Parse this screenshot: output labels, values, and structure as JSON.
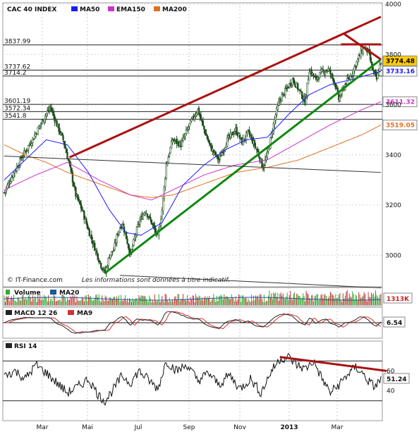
{
  "chart_data": [
    {
      "type": "candlestick",
      "title": "CAC 40 INDEX",
      "legend": [
        {
          "name": "MA50",
          "color": "#1a1aff"
        },
        {
          "name": "EMA150",
          "color": "#cc33cc"
        },
        {
          "name": "MA200",
          "color": "#e07020"
        }
      ],
      "x_ticks": [
        "Mar",
        "Mai",
        "Jul",
        "Sep",
        "Nov",
        "2013",
        "Mar"
      ],
      "y_ticks": [
        3000,
        3200,
        3400,
        3600,
        3800,
        4000
      ],
      "ylim": [
        2880,
        4000
      ],
      "horizontal_levels": [
        {
          "label": "3837.99",
          "value": 3837.99
        },
        {
          "label": "3737.62",
          "value": 3737.62
        },
        {
          "label": "3714.2",
          "value": 3714.2
        },
        {
          "label": "3601.19",
          "value": 3601.19
        },
        {
          "label": "3572.34",
          "value": 3572.34
        },
        {
          "label": "3541.8",
          "value": 3541.8
        }
      ],
      "price_tags": [
        {
          "label": "3774.48",
          "value": 3774.48,
          "bg": "#ffcc00",
          "color": "#000000"
        },
        {
          "label": "3733.16",
          "value": 3733.16,
          "bg": "#ffffff",
          "color": "#1a1aff"
        },
        {
          "label": "3611.32",
          "value": 3611.32,
          "bg": "#ffffff",
          "color": "#cc33cc"
        },
        {
          "label": "3519.05",
          "value": 3519.05,
          "bg": "#ffffff",
          "color": "#e07020"
        }
      ],
      "close_keypoints": [
        [
          0,
          3250
        ],
        [
          8,
          3320
        ],
        [
          18,
          3400
        ],
        [
          28,
          3470
        ],
        [
          38,
          3550
        ],
        [
          44,
          3590
        ],
        [
          50,
          3520
        ],
        [
          56,
          3460
        ],
        [
          62,
          3360
        ],
        [
          68,
          3240
        ],
        [
          74,
          3180
        ],
        [
          80,
          3100
        ],
        [
          86,
          3030
        ],
        [
          92,
          2960
        ],
        [
          96,
          2930
        ],
        [
          100,
          3000
        ],
        [
          104,
          3020
        ],
        [
          108,
          3090
        ],
        [
          112,
          3130
        ],
        [
          116,
          3070
        ],
        [
          120,
          3000
        ],
        [
          124,
          3070
        ],
        [
          128,
          3130
        ],
        [
          134,
          3180
        ],
        [
          140,
          3130
        ],
        [
          146,
          3070
        ],
        [
          150,
          3180
        ],
        [
          154,
          3360
        ],
        [
          160,
          3460
        ],
        [
          168,
          3440
        ],
        [
          176,
          3520
        ],
        [
          184,
          3580
        ],
        [
          190,
          3500
        ],
        [
          196,
          3430
        ],
        [
          204,
          3380
        ],
        [
          212,
          3460
        ],
        [
          220,
          3500
        ],
        [
          226,
          3450
        ],
        [
          232,
          3490
        ],
        [
          240,
          3420
        ],
        [
          246,
          3350
        ],
        [
          250,
          3400
        ],
        [
          254,
          3480
        ],
        [
          258,
          3560
        ],
        [
          262,
          3620
        ],
        [
          268,
          3660
        ],
        [
          274,
          3700
        ],
        [
          280,
          3660
        ],
        [
          286,
          3610
        ],
        [
          290,
          3740
        ],
        [
          296,
          3700
        ],
        [
          302,
          3730
        ],
        [
          308,
          3740
        ],
        [
          314,
          3690
        ],
        [
          318,
          3620
        ],
        [
          324,
          3680
        ],
        [
          330,
          3720
        ],
        [
          336,
          3780
        ],
        [
          342,
          3830
        ],
        [
          346,
          3810
        ],
        [
          350,
          3740
        ],
        [
          354,
          3700
        ],
        [
          358,
          3774.48
        ]
      ],
      "ma50": [
        [
          0,
          3300
        ],
        [
          20,
          3380
        ],
        [
          40,
          3460
        ],
        [
          60,
          3440
        ],
        [
          80,
          3330
        ],
        [
          100,
          3180
        ],
        [
          116,
          3090
        ],
        [
          130,
          3080
        ],
        [
          150,
          3130
        ],
        [
          170,
          3280
        ],
        [
          190,
          3360
        ],
        [
          210,
          3420
        ],
        [
          230,
          3460
        ],
        [
          250,
          3470
        ],
        [
          270,
          3560
        ],
        [
          290,
          3640
        ],
        [
          310,
          3680
        ],
        [
          330,
          3700
        ],
        [
          358,
          3733.16
        ]
      ],
      "ema150": [
        [
          0,
          3260
        ],
        [
          30,
          3320
        ],
        [
          60,
          3370
        ],
        [
          90,
          3300
        ],
        [
          120,
          3240
        ],
        [
          140,
          3220
        ],
        [
          160,
          3260
        ],
        [
          190,
          3320
        ],
        [
          220,
          3360
        ],
        [
          250,
          3380
        ],
        [
          280,
          3450
        ],
        [
          310,
          3520
        ],
        [
          340,
          3580
        ],
        [
          358,
          3611.32
        ]
      ],
      "ma200": [
        [
          0,
          3440
        ],
        [
          20,
          3400
        ],
        [
          40,
          3370
        ],
        [
          60,
          3330
        ],
        [
          80,
          3300
        ],
        [
          100,
          3270
        ],
        [
          120,
          3240
        ],
        [
          140,
          3230
        ],
        [
          160,
          3240
        ],
        [
          180,
          3270
        ],
        [
          200,
          3300
        ],
        [
          220,
          3330
        ],
        [
          250,
          3350
        ],
        [
          280,
          3380
        ],
        [
          310,
          3430
        ],
        [
          340,
          3480
        ],
        [
          358,
          3519.05
        ]
      ],
      "trendlines": [
        {
          "name": "upper-resistance",
          "color": "#aa1111",
          "from": [
            62,
            3390
          ],
          "to": [
            358,
            3950
          ]
        },
        {
          "name": "lower-support",
          "color": "#118811",
          "from": [
            96,
            2930
          ],
          "to": [
            358,
            3780
          ]
        },
        {
          "name": "lateral-top",
          "color": "#aa1111",
          "from": [
            320,
            3840
          ],
          "to": [
            358,
            3840
          ]
        },
        {
          "name": "cross-down",
          "color": "#aa1111",
          "from": [
            322,
            3885
          ],
          "to": [
            358,
            3780
          ]
        },
        {
          "name": "long-support",
          "color": "#333333",
          "from": [
            110,
            2920
          ],
          "to": [
            358,
            2870
          ]
        },
        {
          "name": "long-resistance",
          "color": "#333333",
          "from": [
            0,
            3395
          ],
          "to": [
            358,
            3330
          ]
        }
      ],
      "watermark": "© IT-Finance.com",
      "note": "Les informations sont données à titre indicatif."
    },
    {
      "type": "bar",
      "title": "Volume",
      "legend": [
        {
          "name": "MA20",
          "color": "#1a5a9a"
        }
      ],
      "last_value_label": "1313K"
    },
    {
      "type": "line",
      "title": "MACD 12 26",
      "legend": [
        {
          "name": "MA9",
          "color": "#cc3333"
        }
      ],
      "last_value_label": "6.54"
    },
    {
      "type": "line",
      "title": "RSI 14",
      "y_ticks": [
        40,
        60
      ],
      "last_value_label": "51.24",
      "rsi_keypoints": [
        [
          0,
          55
        ],
        [
          10,
          60
        ],
        [
          20,
          52
        ],
        [
          30,
          66
        ],
        [
          40,
          58
        ],
        [
          50,
          48
        ],
        [
          60,
          38
        ],
        [
          70,
          44
        ],
        [
          80,
          52
        ],
        [
          90,
          35
        ],
        [
          96,
          30
        ],
        [
          104,
          42
        ],
        [
          112,
          55
        ],
        [
          120,
          48
        ],
        [
          128,
          60
        ],
        [
          136,
          52
        ],
        [
          146,
          42
        ],
        [
          154,
          70
        ],
        [
          164,
          60
        ],
        [
          174,
          66
        ],
        [
          184,
          50
        ],
        [
          194,
          58
        ],
        [
          204,
          46
        ],
        [
          214,
          56
        ],
        [
          224,
          42
        ],
        [
          234,
          52
        ],
        [
          244,
          38
        ],
        [
          254,
          60
        ],
        [
          262,
          72
        ],
        [
          270,
          74
        ],
        [
          278,
          66
        ],
        [
          286,
          62
        ],
        [
          294,
          70
        ],
        [
          302,
          52
        ],
        [
          310,
          38
        ],
        [
          318,
          46
        ],
        [
          326,
          56
        ],
        [
          334,
          64
        ],
        [
          340,
          58
        ],
        [
          346,
          50
        ],
        [
          352,
          44
        ],
        [
          358,
          51.24
        ]
      ],
      "trendline": {
        "color": "#aa1111",
        "from": [
          262,
          74
        ],
        "to": [
          358,
          60
        ]
      }
    }
  ]
}
